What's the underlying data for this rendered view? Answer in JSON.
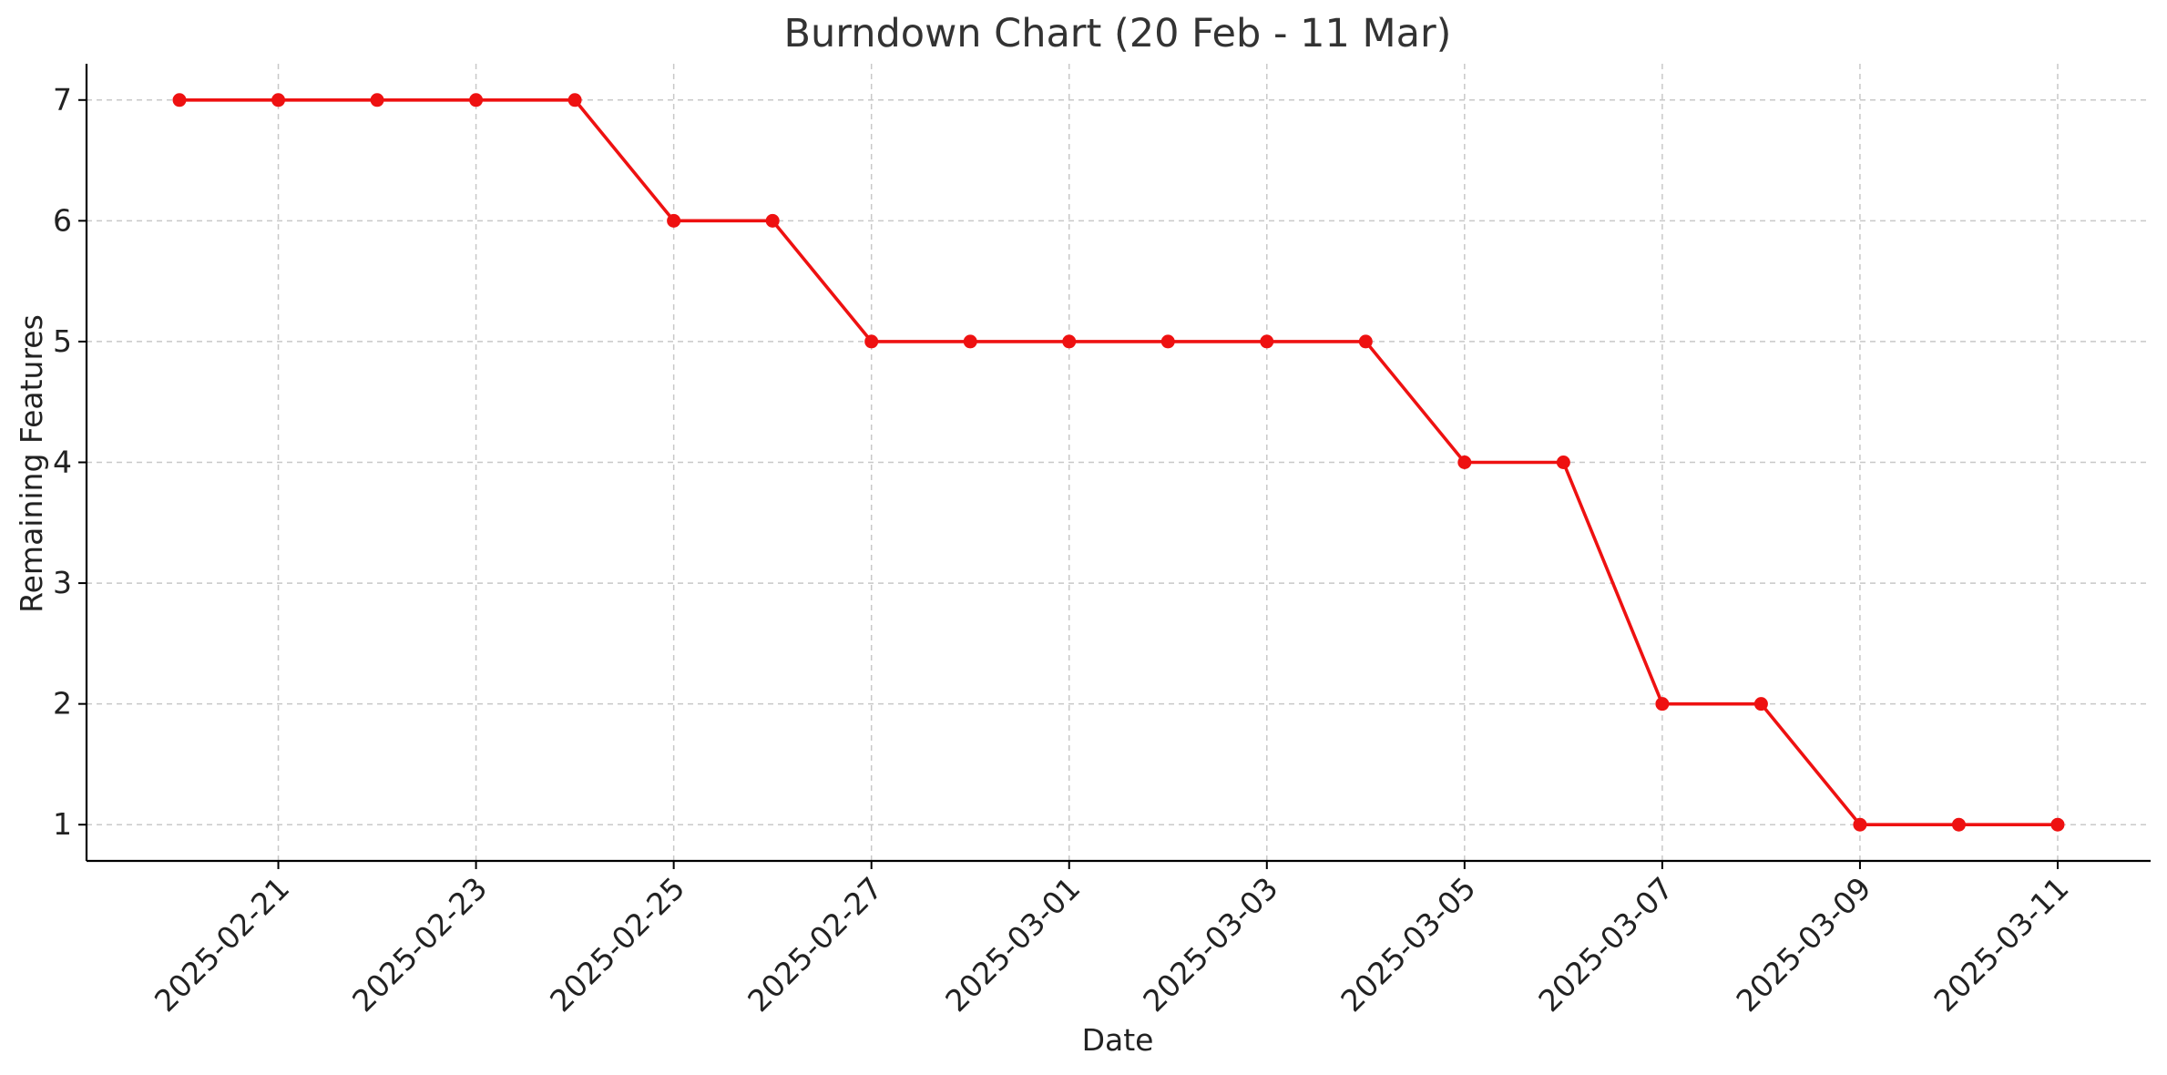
{
  "chart_data": {
    "type": "line",
    "title": "Burndown Chart (20 Feb - 11 Mar)",
    "xlabel": "Date",
    "ylabel": "Remaining Features",
    "x": [
      "2025-02-20",
      "2025-02-21",
      "2025-02-22",
      "2025-02-23",
      "2025-02-24",
      "2025-02-25",
      "2025-02-26",
      "2025-02-27",
      "2025-02-28",
      "2025-03-01",
      "2025-03-02",
      "2025-03-03",
      "2025-03-04",
      "2025-03-05",
      "2025-03-06",
      "2025-03-07",
      "2025-03-08",
      "2025-03-09",
      "2025-03-10",
      "2025-03-11"
    ],
    "series": [
      {
        "values": [
          7,
          7,
          7,
          7,
          7,
          6,
          6,
          5,
          5,
          5,
          5,
          5,
          5,
          4,
          4,
          2,
          2,
          1,
          1,
          1
        ],
        "color": "#ee1111",
        "marker": "circle"
      }
    ],
    "xticks": [
      "2025-02-21",
      "2025-02-23",
      "2025-02-25",
      "2025-02-27",
      "2025-03-01",
      "2025-03-03",
      "2025-03-05",
      "2025-03-07",
      "2025-03-09",
      "2025-03-11"
    ],
    "yticks": [
      1,
      2,
      3,
      4,
      5,
      6,
      7
    ],
    "ylim": [
      0.7,
      7.3
    ],
    "xlim": [
      "2025-02-19",
      "2025-03-12"
    ],
    "grid": true,
    "legend": "none"
  }
}
